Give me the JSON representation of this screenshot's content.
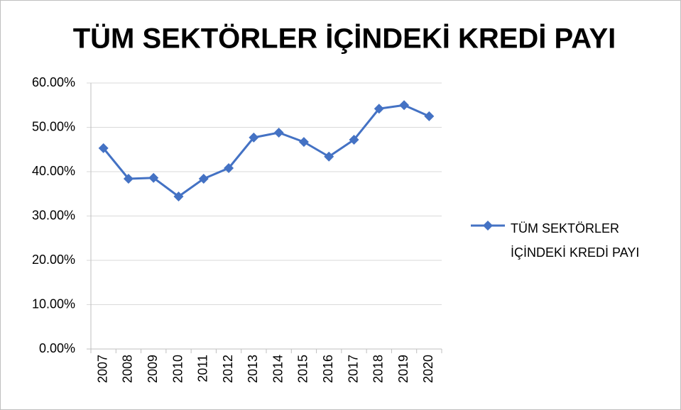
{
  "chart_data": {
    "type": "line",
    "title": "TÜM SEKTÖRLER İÇİNDEKİ KREDİ PAYI",
    "categories": [
      "2007",
      "2008",
      "2009",
      "2010",
      "2011",
      "2012",
      "2013",
      "2014",
      "2015",
      "2016",
      "2017",
      "2018",
      "2019",
      "2020"
    ],
    "series": [
      {
        "name": "TÜM SEKTÖRLER İÇİNDEKİ KREDİ PAYI",
        "color": "#4472c4",
        "values": [
          45.3,
          38.4,
          38.6,
          34.4,
          38.4,
          40.8,
          47.7,
          48.8,
          46.7,
          43.4,
          47.2,
          54.2,
          55.0,
          52.5
        ]
      }
    ],
    "ylim": [
      0,
      60
    ],
    "yticks": [
      {
        "value": 0,
        "label": "0.00%"
      },
      {
        "value": 10,
        "label": "10.00%"
      },
      {
        "value": 20,
        "label": "20.00%"
      },
      {
        "value": 30,
        "label": "30.00%"
      },
      {
        "value": 40,
        "label": "40.00%"
      },
      {
        "value": 50,
        "label": "50.00%"
      },
      {
        "value": 60,
        "label": "60.00%"
      }
    ],
    "grid": true,
    "legend": "right"
  }
}
